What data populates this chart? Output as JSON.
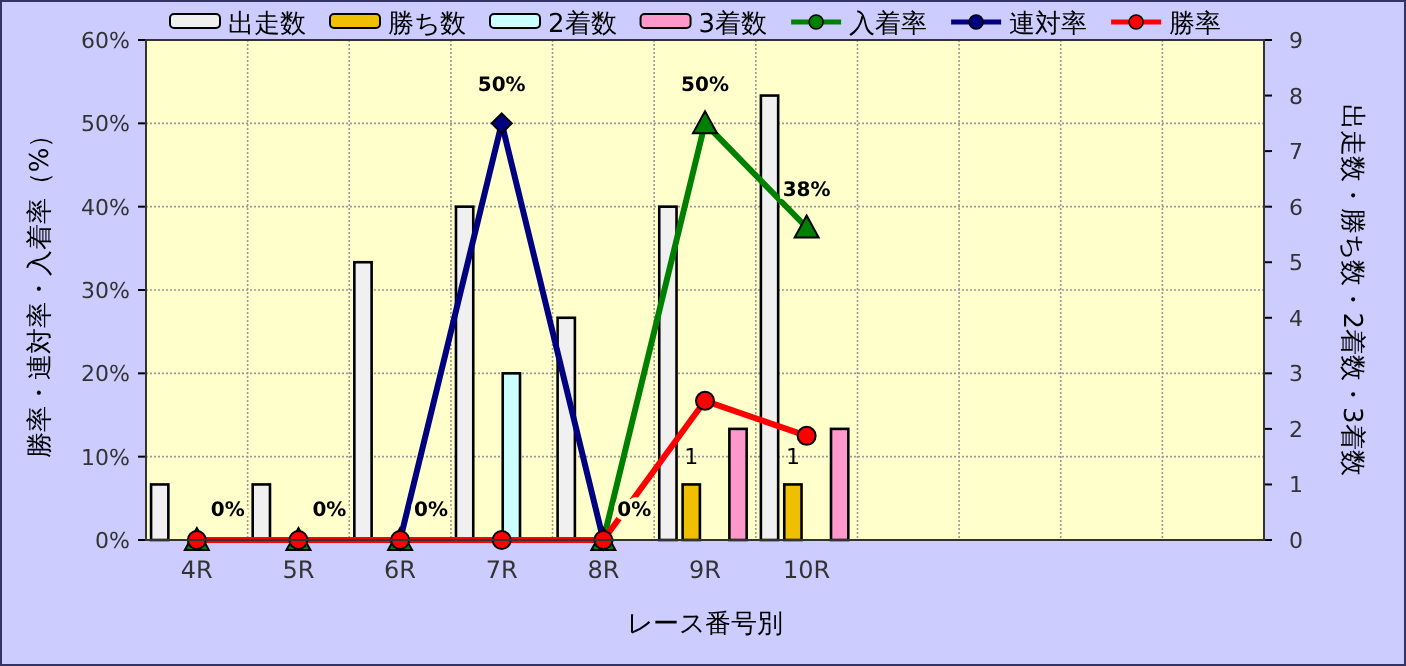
{
  "chart_data": {
    "type": "bar",
    "categories": [
      "4R",
      "5R",
      "6R",
      "7R",
      "8R",
      "9R",
      "10R",
      null,
      null,
      null,
      null
    ],
    "xlabel": "レース番号別",
    "ylabel": "勝率・連対率・入着率（%）",
    "y2label": "出走数・勝ち数・2着数・3着数",
    "ylim": [
      0,
      60
    ],
    "yticks": [
      {
        "value": 0,
        "label": "0%"
      },
      {
        "value": 10,
        "label": "10%"
      },
      {
        "value": 20,
        "label": "20%"
      },
      {
        "value": 30,
        "label": "30%"
      },
      {
        "value": 40,
        "label": "40%"
      },
      {
        "value": 50,
        "label": "50%"
      },
      {
        "value": 60,
        "label": "60%"
      }
    ],
    "y2lim": [
      0,
      9
    ],
    "y2ticks": [
      0,
      1,
      2,
      3,
      4,
      5,
      6,
      7,
      8,
      9
    ],
    "grid": true,
    "legend": "top",
    "series": [
      {
        "name": "出走数",
        "axis": "y2",
        "color": "#f0f0f0",
        "values": [
          1,
          1,
          5,
          6,
          4,
          6,
          8,
          null,
          null,
          null,
          null
        ]
      },
      {
        "name": "勝ち数",
        "axis": "y2",
        "color": "#f0c000",
        "values": [
          0,
          0,
          0,
          0,
          0,
          1,
          1,
          null,
          null,
          null,
          null
        ],
        "value_labels": [
          null,
          null,
          null,
          null,
          null,
          "1",
          "1",
          null,
          null,
          null,
          null
        ]
      },
      {
        "name": "2着数",
        "axis": "y2",
        "color": "#ccffff",
        "values": [
          0,
          0,
          0,
          3,
          0,
          0,
          0,
          null,
          null,
          null,
          null
        ]
      },
      {
        "name": "3着数",
        "axis": "y2",
        "color": "#ff99cc",
        "values": [
          0,
          0,
          0,
          0,
          0,
          2,
          2,
          null,
          null,
          null,
          null
        ]
      },
      {
        "name": "入着率",
        "type": "line",
        "color": "#008000",
        "marker": "triangle",
        "values": [
          0,
          0,
          0,
          null,
          0,
          50,
          37.5,
          null,
          null,
          null,
          null
        ],
        "value_labels": [
          "0%",
          "0%",
          "0%",
          null,
          "0%",
          "50%",
          "38%",
          null,
          null,
          null,
          null
        ]
      },
      {
        "name": "連対率",
        "type": "line",
        "color": "#000080",
        "marker": "diamond",
        "values": [
          null,
          null,
          0,
          50,
          0,
          null,
          null,
          null,
          null,
          null,
          null
        ],
        "value_labels": [
          null,
          null,
          null,
          "50%",
          null,
          null,
          null,
          null,
          null,
          null,
          null
        ]
      },
      {
        "name": "勝率",
        "type": "line",
        "color": "#ff0000",
        "marker": "circle",
        "values": [
          0,
          0,
          0,
          0,
          0,
          16.7,
          12.5,
          null,
          null,
          null,
          null
        ]
      }
    ]
  }
}
